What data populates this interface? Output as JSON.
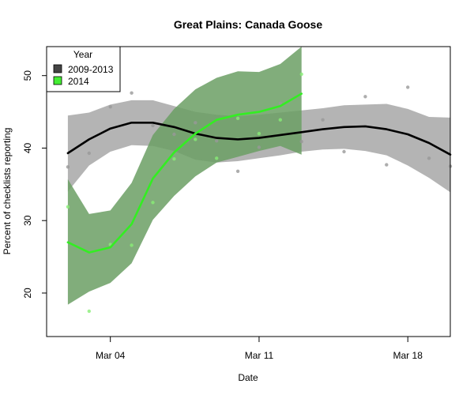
{
  "chart_data": {
    "type": "line",
    "title": "Great Plains: Canada Goose",
    "xlabel": "Date",
    "ylabel": "Percent of checklists reporting",
    "x_unit": "date",
    "xlim": [
      "2013-03-01",
      "2013-03-20"
    ],
    "ylim": [
      14,
      54
    ],
    "x_ticks": [
      {
        "x": "2013-03-04",
        "label": "Mar 04"
      },
      {
        "x": "2013-03-11",
        "label": "Mar 11"
      },
      {
        "x": "2013-03-18",
        "label": "Mar 18"
      }
    ],
    "y_ticks": [
      20,
      30,
      40,
      50
    ],
    "legend": {
      "title": "Year",
      "position": "top-left",
      "entries": [
        {
          "label": "2009-2013",
          "color": "#444444"
        },
        {
          "label": "2014",
          "color": "#44ee33"
        }
      ]
    },
    "series": [
      {
        "name": "2009-2013",
        "line_color": "#000000",
        "band_color": "#b0b0b0",
        "points_color": "#999999",
        "x": [
          "2013-03-02",
          "2013-03-03",
          "2013-03-04",
          "2013-03-05",
          "2013-03-06",
          "2013-03-07",
          "2013-03-08",
          "2013-03-09",
          "2013-03-10",
          "2013-03-11",
          "2013-03-12",
          "2013-03-13",
          "2013-03-14",
          "2013-03-15",
          "2013-03-16",
          "2013-03-17",
          "2013-03-18",
          "2013-03-19",
          "2013-03-20"
        ],
        "y": [
          39.3,
          41.2,
          42.7,
          43.5,
          43.5,
          42.9,
          42.0,
          41.4,
          41.2,
          41.4,
          41.8,
          42.2,
          42.6,
          42.9,
          43.0,
          42.6,
          41.9,
          40.7,
          39.1
        ],
        "lower": [
          34.0,
          37.6,
          39.5,
          40.4,
          40.3,
          39.6,
          38.4,
          38.0,
          38.2,
          38.6,
          39.0,
          39.5,
          39.8,
          39.9,
          39.6,
          39.0,
          37.6,
          35.9,
          33.9
        ],
        "upper": [
          44.5,
          44.9,
          46.0,
          46.6,
          46.6,
          45.8,
          45.0,
          44.6,
          44.4,
          44.6,
          44.9,
          45.2,
          45.5,
          45.9,
          46.0,
          46.1,
          45.4,
          44.3,
          44.2
        ],
        "points": [
          [
            "2013-03-02",
            37.4
          ],
          [
            "2013-03-03",
            39.3
          ],
          [
            "2013-03-04",
            45.7
          ],
          [
            "2013-03-05",
            47.6
          ],
          [
            "2013-03-06",
            43.1
          ],
          [
            "2013-03-07",
            41.9
          ],
          [
            "2013-03-08",
            43.5
          ],
          [
            "2013-03-09",
            41.0
          ],
          [
            "2013-03-10",
            36.8
          ],
          [
            "2013-03-11",
            40.1
          ],
          [
            "2013-03-12",
            46.2
          ],
          [
            "2013-03-13",
            40.9
          ],
          [
            "2013-03-14",
            43.9
          ],
          [
            "2013-03-15",
            39.5
          ],
          [
            "2013-03-16",
            47.1
          ],
          [
            "2013-03-17",
            37.7
          ],
          [
            "2013-03-18",
            48.4
          ],
          [
            "2013-03-19",
            38.6
          ],
          [
            "2013-03-20",
            37.5
          ]
        ]
      },
      {
        "name": "2014",
        "line_color": "#33ee22",
        "band_color": "#6b9f64",
        "points_color": "#88ee77",
        "x": [
          "2013-03-02",
          "2013-03-03",
          "2013-03-04",
          "2013-03-05",
          "2013-03-06",
          "2013-03-07",
          "2013-03-08",
          "2013-03-09",
          "2013-03-10",
          "2013-03-11",
          "2013-03-12",
          "2013-03-13"
        ],
        "y": [
          27.0,
          25.6,
          26.3,
          29.5,
          35.8,
          39.4,
          42.0,
          43.9,
          44.6,
          45.0,
          45.8,
          47.5
        ],
        "lower": [
          18.4,
          20.2,
          21.4,
          24.1,
          30.1,
          33.4,
          36.1,
          38.0,
          38.8,
          39.6,
          40.3,
          39.1
        ],
        "upper": [
          35.7,
          30.9,
          31.4,
          35.2,
          41.8,
          45.4,
          48.1,
          49.7,
          50.6,
          50.5,
          51.6,
          55.5
        ],
        "points": [
          [
            "2013-03-02",
            31.9
          ],
          [
            "2013-03-03",
            17.5
          ],
          [
            "2013-03-04",
            26.7
          ],
          [
            "2013-03-05",
            26.6
          ],
          [
            "2013-03-06",
            32.5
          ],
          [
            "2013-03-07",
            38.5
          ],
          [
            "2013-03-08",
            41.2
          ],
          [
            "2013-03-09",
            38.6
          ],
          [
            "2013-03-10",
            44.1
          ],
          [
            "2013-03-11",
            42.0
          ],
          [
            "2013-03-12",
            43.9
          ],
          [
            "2013-03-13",
            50.2
          ]
        ]
      }
    ]
  }
}
